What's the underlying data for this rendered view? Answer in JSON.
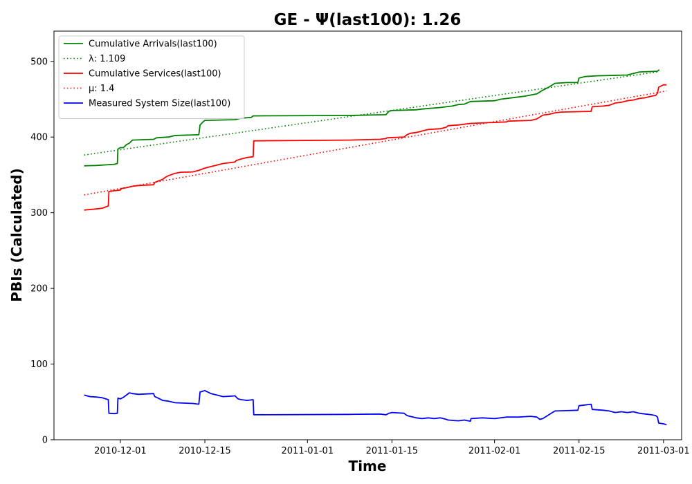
{
  "chart_data": {
    "type": "line",
    "title": "GE -  Ψ(last100): 1.26",
    "xlabel": "Time",
    "ylabel": "PBIs (Calculated)",
    "x_range": [
      "2010-11-20",
      "2011-03-04"
    ],
    "ylim": [
      0,
      540
    ],
    "x_ticks": [
      "2010-12-01",
      "2010-12-15",
      "2011-01-01",
      "2011-01-15",
      "2011-02-01",
      "2011-02-15",
      "2011-03-01"
    ],
    "y_ticks": [
      0,
      100,
      200,
      300,
      400,
      500
    ],
    "grid": false,
    "legend_position": "upper-left",
    "series": [
      {
        "name": "Cumulative Arrivals(last100)",
        "color": "#008000",
        "style": "solid",
        "points": [
          [
            "2010-11-25",
            362
          ],
          [
            "2010-11-27",
            362.5
          ],
          [
            "2010-11-30",
            364
          ],
          [
            "2010-11-30.5",
            365
          ],
          [
            "2010-11-30.6",
            384
          ],
          [
            "2010-12-01",
            386
          ],
          [
            "2010-12-01.5",
            386
          ],
          [
            "2010-12-02",
            390
          ],
          [
            "2010-12-02.5",
            392
          ],
          [
            "2010-12-03",
            396
          ],
          [
            "2010-12-06.5",
            397
          ],
          [
            "2010-12-07",
            399
          ],
          [
            "2010-12-09",
            400
          ],
          [
            "2010-12-10",
            402
          ],
          [
            "2010-12-14",
            403
          ],
          [
            "2010-12-14.2",
            416
          ],
          [
            "2010-12-14.7",
            420
          ],
          [
            "2010-12-15",
            422
          ],
          [
            "2010-12-20",
            423
          ],
          [
            "2010-12-21",
            425
          ],
          [
            "2010-12-22.7",
            426
          ],
          [
            "2010-12-23",
            428
          ],
          [
            "2011-01-08",
            428.5
          ],
          [
            "2011-01-14",
            429.5
          ],
          [
            "2011-01-14.5",
            434
          ],
          [
            "2011-01-15",
            435
          ],
          [
            "2011-01-19",
            436
          ],
          [
            "2011-01-20",
            437
          ],
          [
            "2011-01-23",
            439
          ],
          [
            "2011-01-24",
            440
          ],
          [
            "2011-01-25",
            441
          ],
          [
            "2011-01-26",
            443
          ],
          [
            "2011-01-27",
            443.5
          ],
          [
            "2011-01-28",
            447
          ],
          [
            "2011-02-01",
            448
          ],
          [
            "2011-02-02",
            450
          ],
          [
            "2011-02-04",
            452
          ],
          [
            "2011-02-06",
            454
          ],
          [
            "2011-02-08",
            457
          ],
          [
            "2011-02-09",
            462
          ],
          [
            "2011-02-10",
            466
          ],
          [
            "2011-02-11",
            471
          ],
          [
            "2011-02-13",
            472
          ],
          [
            "2011-02-14.8",
            472
          ],
          [
            "2011-02-15",
            478
          ],
          [
            "2011-02-16",
            480
          ],
          [
            "2011-02-18",
            481
          ],
          [
            "2011-02-23",
            482
          ],
          [
            "2011-02-24",
            484
          ],
          [
            "2011-02-25",
            486
          ],
          [
            "2011-02-28",
            487
          ],
          [
            "2011-02-28.3",
            489
          ]
        ]
      },
      {
        "name": "λ: 1.109",
        "color": "#008000",
        "style": "dotted",
        "points": [
          [
            "2010-11-25",
            376.3
          ],
          [
            "2011-02-28.3",
            486.5
          ]
        ]
      },
      {
        "name": "Cumulative Services(last100)",
        "color": "#ff0000",
        "style": "solid",
        "points": [
          [
            "2010-11-25",
            303.5
          ],
          [
            "2010-11-27",
            305
          ],
          [
            "2010-11-28",
            306
          ],
          [
            "2010-11-28.7",
            308
          ],
          [
            "2010-11-29",
            309
          ],
          [
            "2010-11-29.1",
            328
          ],
          [
            "2010-11-30",
            329
          ],
          [
            "2010-12-01",
            330
          ],
          [
            "2010-12-01.2",
            332
          ],
          [
            "2010-12-02",
            333
          ],
          [
            "2010-12-03",
            335
          ],
          [
            "2010-12-04",
            336
          ],
          [
            "2010-12-06.5",
            337
          ],
          [
            "2010-12-06.7",
            340
          ],
          [
            "2010-12-07.3",
            342
          ],
          [
            "2010-12-08",
            344
          ],
          [
            "2010-12-08.5",
            347
          ],
          [
            "2010-12-09",
            349
          ],
          [
            "2010-12-10",
            352
          ],
          [
            "2010-12-11",
            353.5
          ],
          [
            "2010-12-13",
            354
          ],
          [
            "2010-12-14",
            356
          ],
          [
            "2010-12-15",
            359
          ],
          [
            "2010-12-16",
            361
          ],
          [
            "2010-12-17",
            363
          ],
          [
            "2010-12-18",
            365
          ],
          [
            "2010-12-19",
            366
          ],
          [
            "2010-12-20",
            367
          ],
          [
            "2010-12-20.2",
            369
          ],
          [
            "2010-12-21",
            371
          ],
          [
            "2010-12-22",
            373
          ],
          [
            "2010-12-23",
            374
          ],
          [
            "2010-12-23.1",
            395
          ],
          [
            "2011-01-08",
            396
          ],
          [
            "2011-01-13",
            397
          ],
          [
            "2011-01-14",
            398
          ],
          [
            "2011-01-14.2",
            399
          ],
          [
            "2011-01-17",
            400
          ],
          [
            "2011-01-17.5",
            403
          ],
          [
            "2011-01-18",
            405
          ],
          [
            "2011-01-19",
            406
          ],
          [
            "2011-01-20",
            408
          ],
          [
            "2011-01-21",
            410
          ],
          [
            "2011-01-23",
            411
          ],
          [
            "2011-01-24",
            413
          ],
          [
            "2011-01-24.3",
            415
          ],
          [
            "2011-01-26",
            416
          ],
          [
            "2011-01-27",
            417
          ],
          [
            "2011-01-28",
            418
          ],
          [
            "2011-01-31",
            419
          ],
          [
            "2011-02-03",
            420
          ],
          [
            "2011-02-03.2",
            421
          ],
          [
            "2011-02-07",
            422
          ],
          [
            "2011-02-08",
            424
          ],
          [
            "2011-02-09",
            429
          ],
          [
            "2011-02-10",
            430
          ],
          [
            "2011-02-11",
            432
          ],
          [
            "2011-02-12",
            433
          ],
          [
            "2011-02-17",
            434
          ],
          [
            "2011-02-17.2",
            440
          ],
          [
            "2011-02-19",
            441
          ],
          [
            "2011-02-20",
            442
          ],
          [
            "2011-02-21",
            445
          ],
          [
            "2011-02-22",
            446
          ],
          [
            "2011-02-23",
            448
          ],
          [
            "2011-02-24",
            449
          ],
          [
            "2011-02-25",
            451
          ],
          [
            "2011-02-26",
            452
          ],
          [
            "2011-02-27",
            454
          ],
          [
            "2011-02-27.7",
            455
          ],
          [
            "2011-02-28",
            458
          ],
          [
            "2011-02-28.2",
            466
          ],
          [
            "2011-03-01",
            469
          ],
          [
            "2011-03-01.5",
            469
          ]
        ]
      },
      {
        "name": "μ: 1.4",
        "color": "#ff0000",
        "style": "dotted",
        "points": [
          [
            "2010-11-25",
            323.5
          ],
          [
            "2011-03-01.5",
            461
          ]
        ]
      },
      {
        "name": "Measured System Size(last100)",
        "color": "#0000ff",
        "style": "solid",
        "points": [
          [
            "2010-11-25",
            59
          ],
          [
            "2010-11-26",
            57
          ],
          [
            "2010-11-27",
            56.5
          ],
          [
            "2010-11-28",
            55.5
          ],
          [
            "2010-11-29",
            53
          ],
          [
            "2010-11-29.1",
            35
          ],
          [
            "2010-11-30",
            34.5
          ],
          [
            "2010-11-30.5",
            35
          ],
          [
            "2010-11-30.6",
            55
          ],
          [
            "2010-12-01",
            54
          ],
          [
            "2010-12-01.5",
            56
          ],
          [
            "2010-12-02",
            59
          ],
          [
            "2010-12-02.5",
            62
          ],
          [
            "2010-12-03",
            61
          ],
          [
            "2010-12-04",
            60
          ],
          [
            "2010-12-06.5",
            61
          ],
          [
            "2010-12-06.7",
            57
          ],
          [
            "2010-12-07",
            56
          ],
          [
            "2010-12-08",
            52
          ],
          [
            "2010-12-09",
            51
          ],
          [
            "2010-12-10",
            49
          ],
          [
            "2010-12-13",
            48
          ],
          [
            "2010-12-14",
            47
          ],
          [
            "2010-12-14.2",
            63
          ],
          [
            "2010-12-15",
            65
          ],
          [
            "2010-12-16",
            61
          ],
          [
            "2010-12-17",
            59
          ],
          [
            "2010-12-18",
            57
          ],
          [
            "2010-12-19",
            57.5
          ],
          [
            "2010-12-20",
            58
          ],
          [
            "2010-12-20.5",
            54
          ],
          [
            "2010-12-21",
            53
          ],
          [
            "2010-12-22",
            52
          ],
          [
            "2010-12-23",
            53
          ],
          [
            "2010-12-23.1",
            33
          ],
          [
            "2011-01-08",
            33.5
          ],
          [
            "2011-01-13",
            34
          ],
          [
            "2011-01-14",
            33
          ],
          [
            "2011-01-14.5",
            35
          ],
          [
            "2011-01-15",
            36
          ],
          [
            "2011-01-17",
            35
          ],
          [
            "2011-01-17.5",
            32
          ],
          [
            "2011-01-18",
            31
          ],
          [
            "2011-01-19",
            29
          ],
          [
            "2011-01-20",
            28
          ],
          [
            "2011-01-21",
            29
          ],
          [
            "2011-01-22",
            28
          ],
          [
            "2011-01-23",
            29
          ],
          [
            "2011-01-24",
            27
          ],
          [
            "2011-01-24.3",
            26
          ],
          [
            "2011-01-26",
            25
          ],
          [
            "2011-01-27",
            26
          ],
          [
            "2011-01-28",
            24.5
          ],
          [
            "2011-01-28.1",
            28
          ],
          [
            "2011-01-30",
            29
          ],
          [
            "2011-02-01",
            28
          ],
          [
            "2011-02-02",
            29
          ],
          [
            "2011-02-03",
            30
          ],
          [
            "2011-02-05",
            30
          ],
          [
            "2011-02-06",
            30.5
          ],
          [
            "2011-02-07",
            31
          ],
          [
            "2011-02-08",
            30
          ],
          [
            "2011-02-08.5",
            27
          ],
          [
            "2011-02-09",
            28
          ],
          [
            "2011-02-10",
            33
          ],
          [
            "2011-02-11",
            38
          ],
          [
            "2011-02-13",
            38.5
          ],
          [
            "2011-02-14.8",
            39
          ],
          [
            "2011-02-15",
            45
          ],
          [
            "2011-02-16",
            46
          ],
          [
            "2011-02-17",
            47
          ],
          [
            "2011-02-17.2",
            40
          ],
          [
            "2011-02-19",
            39
          ],
          [
            "2011-02-20",
            38
          ],
          [
            "2011-02-21",
            36
          ],
          [
            "2011-02-22",
            37
          ],
          [
            "2011-02-23",
            36
          ],
          [
            "2011-02-24",
            37
          ],
          [
            "2011-02-25",
            35
          ],
          [
            "2011-02-26",
            34
          ],
          [
            "2011-02-27",
            33
          ],
          [
            "2011-02-27.7",
            32
          ],
          [
            "2011-02-28",
            30
          ],
          [
            "2011-02-28.2",
            22
          ],
          [
            "2011-03-01",
            21
          ],
          [
            "2011-03-01.5",
            20
          ]
        ]
      }
    ]
  }
}
